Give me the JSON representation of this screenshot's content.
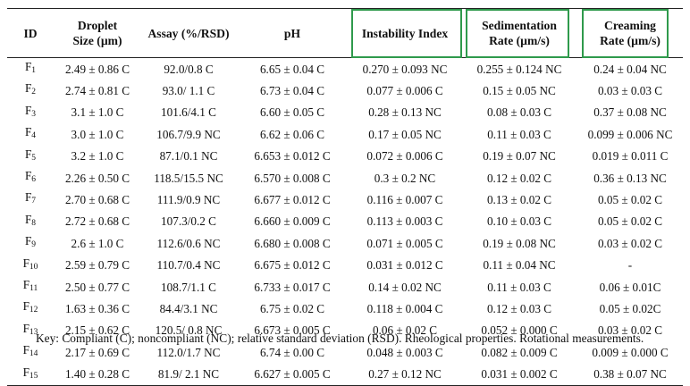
{
  "table": {
    "headers": [
      [
        "ID"
      ],
      [
        "Droplet",
        "Size (µm)"
      ],
      [
        "Assay (%/RSD)"
      ],
      [
        "pH"
      ],
      [
        "Instability Index"
      ],
      [
        "Sedimentation",
        "Rate (µm/s)"
      ],
      [
        "Creaming",
        "Rate (µm/s)"
      ]
    ],
    "highlighted_columns": [
      "Instability Index",
      "Sedimentation Rate (µm/s)",
      "Creaming Rate (µm/s)"
    ],
    "highlight_color": "#2f9a4c",
    "rows": [
      {
        "id": "F",
        "sub": "1",
        "cells": [
          "2.49 ± 0.86 C",
          "92.0/0.8 C",
          "6.65 ± 0.04 C",
          "0.270 ± 0.093 NC",
          "0.255 ± 0.124 NC",
          "0.24 ± 0.04 NC"
        ]
      },
      {
        "id": "F",
        "sub": "2",
        "cells": [
          "2.74 ± 0.81 C",
          "93.0/ 1.1 C",
          "6.73 ± 0.04 C",
          "0.077 ± 0.006 C",
          "0.15 ± 0.05 NC",
          "0.03 ± 0.03 C"
        ]
      },
      {
        "id": "F",
        "sub": "3",
        "cells": [
          "3.1 ± 1.0 C",
          "101.6/4.1 C",
          "6.60 ± 0.05 C",
          "0.28 ± 0.13 NC",
          "0.08 ± 0.03 C",
          "0.37 ± 0.08 NC"
        ]
      },
      {
        "id": "F",
        "sub": "4",
        "cells": [
          "3.0 ± 1.0 C",
          "106.7/9.9 NC",
          "6.62 ± 0.06 C",
          "0.17 ± 0.05 NC",
          "0.11 ± 0.03 C",
          "0.099 ± 0.006 NC"
        ]
      },
      {
        "id": "F",
        "sub": "5",
        "cells": [
          "3.2 ± 1.0 C",
          "87.1/0.1 NC",
          "6.653 ± 0.012 C",
          "0.072 ± 0.006 C",
          "0.19 ± 0.07 NC",
          "0.019 ± 0.011 C"
        ]
      },
      {
        "id": "F",
        "sub": "6",
        "cells": [
          "2.26 ± 0.50 C",
          "118.5/15.5 NC",
          "6.570 ± 0.008 C",
          "0.3 ± 0.2 NC",
          "0.12 ± 0.02 C",
          "0.36 ± 0.13 NC"
        ]
      },
      {
        "id": "F",
        "sub": "7",
        "cells": [
          "2.70 ± 0.68 C",
          "111.9/0.9 NC",
          "6.677 ± 0.012 C",
          "0.116 ± 0.007 C",
          "0.13 ± 0.02 C",
          "0.05 ± 0.02 C"
        ]
      },
      {
        "id": "F",
        "sub": "8",
        "cells": [
          "2.72 ± 0.68 C",
          "107.3/0.2 C",
          "6.660 ± 0.009 C",
          "0.113 ± 0.003 C",
          "0.10 ± 0.03 C",
          "0.05 ± 0.02 C"
        ]
      },
      {
        "id": "F",
        "sub": "9",
        "cells": [
          "2.6 ± 1.0 C",
          "112.6/0.6 NC",
          "6.680 ± 0.008 C",
          "0.071 ± 0.005 C",
          "0.19 ± 0.08 NC",
          "0.03 ± 0.02 C"
        ]
      },
      {
        "id": "F",
        "sub": "10",
        "cells": [
          "2.59 ± 0.79 C",
          "110.7/0.4 NC",
          "6.675 ± 0.012 C",
          "0.031 ± 0.012 C",
          "0.11 ± 0.04 NC",
          "-"
        ]
      },
      {
        "id": "F",
        "sub": "11",
        "cells": [
          "2.50 ± 0.77 C",
          "108.7/1.1 C",
          "6.733 ± 0.017 C",
          "0.14 ± 0.02 NC",
          "0.11 ± 0.03 C",
          "0.06 ± 0.01C"
        ]
      },
      {
        "id": "F",
        "sub": "12",
        "cells": [
          "1.63 ± 0.36 C",
          "84.4/3.1 NC",
          "6.75 ± 0.02 C",
          "0.118 ± 0.004 C",
          "0.12 ± 0.03 C",
          "0.05 ± 0.02C"
        ]
      },
      {
        "id": "F",
        "sub": "13",
        "cells": [
          "2.15 ± 0.62 C",
          "120.5/ 0.8 NC",
          "6.673 ± 0.005 C",
          "0.06 ± 0.02 C",
          "0.052 ± 0.000 C",
          "0.03 ± 0.02 C"
        ]
      },
      {
        "id": "F",
        "sub": "14",
        "cells": [
          "2.17 ± 0.69 C",
          "112.0/1.7 NC",
          "6.74 ± 0.00 C",
          "0.048 ± 0.003 C",
          "0.082 ± 0.009 C",
          "0.009 ± 0.000 C"
        ]
      },
      {
        "id": "F",
        "sub": "15",
        "cells": [
          "1.40 ± 0.28 C",
          "81.9/ 2.1 NC",
          "6.627 ± 0.005 C",
          "0.27 ± 0.12 NC",
          "0.031 ± 0.002 C",
          "0.38 ± 0.07 NC"
        ]
      }
    ]
  },
  "footnote": "Key:   Compliant (C); noncompliant (NC); relative standard deviation (RSD). Rheological properties. Rotational measurements."
}
